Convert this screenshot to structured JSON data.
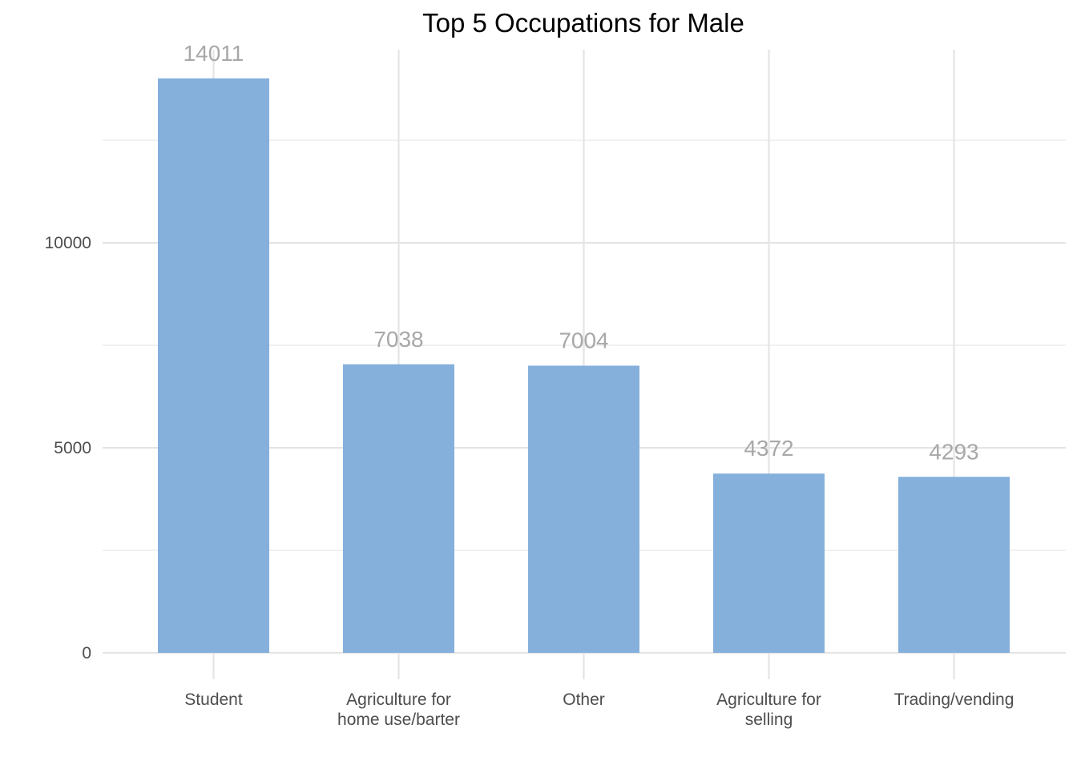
{
  "chart_data": {
    "type": "bar",
    "title": "Top 5 Occupations for Male",
    "xlabel": "",
    "ylabel": "",
    "categories": [
      [
        "Student"
      ],
      [
        "Agriculture for",
        "home use/barter"
      ],
      [
        "Other"
      ],
      [
        "Agriculture for",
        "selling"
      ],
      [
        "Trading/vending"
      ]
    ],
    "values": [
      14011,
      7038,
      7004,
      4372,
      4293
    ],
    "ylim": [
      0,
      14711
    ],
    "yticks": [
      0,
      5000,
      10000
    ],
    "ytick_labels": [
      "0",
      "5000",
      "10000"
    ],
    "y_minor_gridlines": [
      2500,
      7500,
      12500
    ],
    "data_labels": [
      "14011",
      "7038",
      "7004",
      "4372",
      "4293"
    ],
    "grid": true,
    "legend": "none",
    "bar_color": "#85b0dc",
    "data_label_color": "#a8a8a8",
    "grid_color": "#e4e4e4"
  }
}
